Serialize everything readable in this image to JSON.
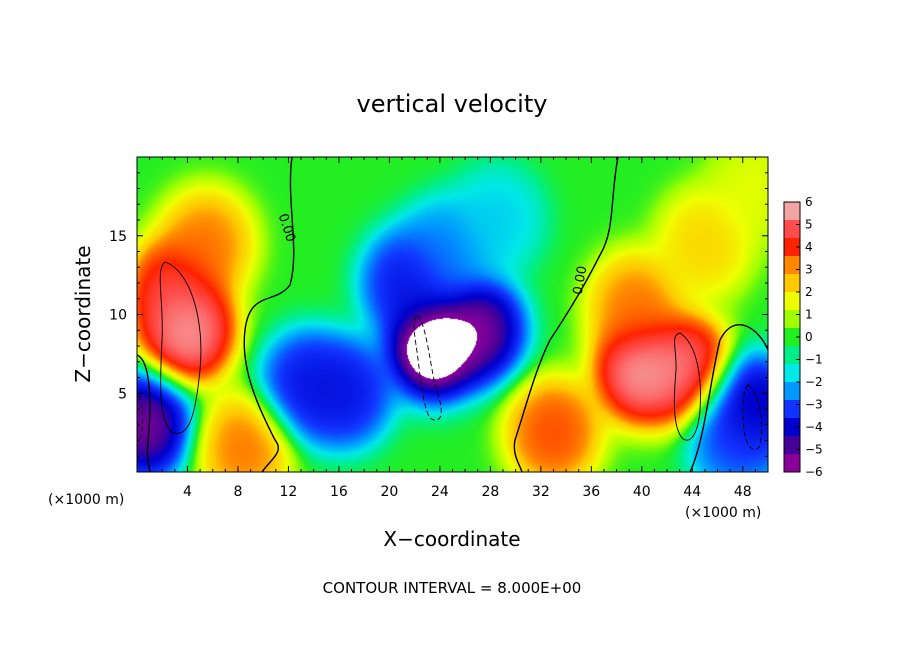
{
  "chart_data": {
    "type": "heatmap",
    "title": "vertical velocity",
    "xlabel": "X−coordinate",
    "ylabel": "Z−coordinate",
    "x_unit_left": "(×1000 m)",
    "x_unit_right": "(×1000 m)",
    "xlim": [
      0,
      50
    ],
    "ylim": [
      0,
      20
    ],
    "x_ticks": [
      4,
      8,
      12,
      16,
      20,
      24,
      28,
      32,
      36,
      40,
      44,
      48
    ],
    "y_ticks": [
      5,
      10,
      15
    ],
    "colorbar": {
      "range": [
        -6,
        6
      ],
      "ticks": [
        "6",
        "5",
        "4",
        "3",
        "2",
        "1",
        "0",
        "−1",
        "−2",
        "−3",
        "−4",
        "−5",
        "−6"
      ],
      "colors": [
        "#f4a3a3",
        "#ff4d4d",
        "#ff2200",
        "#ff8800",
        "#ffc800",
        "#f0ff00",
        "#a0ff00",
        "#22ee22",
        "#00ee88",
        "#00e8e8",
        "#0099ff",
        "#1133ff",
        "#0000cc",
        "#440099",
        "#880099"
      ]
    },
    "contour_label": "0.00",
    "contour_interval_text": "CONTOUR INTERVAL = 8.000E+00",
    "features": [
      {
        "x": 4.0,
        "z": 9.0,
        "value": 6.5
      },
      {
        "x": 3.0,
        "z": 11.5,
        "value": 5.5
      },
      {
        "x": 0.6,
        "z": 3.0,
        "value": -6.5
      },
      {
        "x": 8.5,
        "z": 1.5,
        "value": 4.0
      },
      {
        "x": 5.5,
        "z": 14.5,
        "value": 4.0
      },
      {
        "x": 13.5,
        "z": 5.5,
        "value": -5.0
      },
      {
        "x": 16.5,
        "z": 5.0,
        "value": -5.0
      },
      {
        "x": 23.5,
        "z": 8.0,
        "value": -7.5
      },
      {
        "x": 21.5,
        "z": 12.0,
        "value": -5.0
      },
      {
        "x": 27.0,
        "z": 9.0,
        "value": -6.5
      },
      {
        "x": 24.5,
        "z": 14.0,
        "value": -3.5
      },
      {
        "x": 28.5,
        "z": 16.0,
        "value": -2.5
      },
      {
        "x": 33.0,
        "z": 2.5,
        "value": 4.5
      },
      {
        "x": 40.0,
        "z": 6.5,
        "value": 6.5
      },
      {
        "x": 43.5,
        "z": 6.5,
        "value": 6.0
      },
      {
        "x": 39.5,
        "z": 10.5,
        "value": 4.0
      },
      {
        "x": 45.0,
        "z": 14.5,
        "value": 3.0
      },
      {
        "x": 48.5,
        "z": 4.0,
        "value": -6.0
      },
      {
        "x": 47.5,
        "z": 2.0,
        "value": -4.0
      },
      {
        "x": 49.0,
        "z": 18.0,
        "value": 2.0
      }
    ]
  }
}
